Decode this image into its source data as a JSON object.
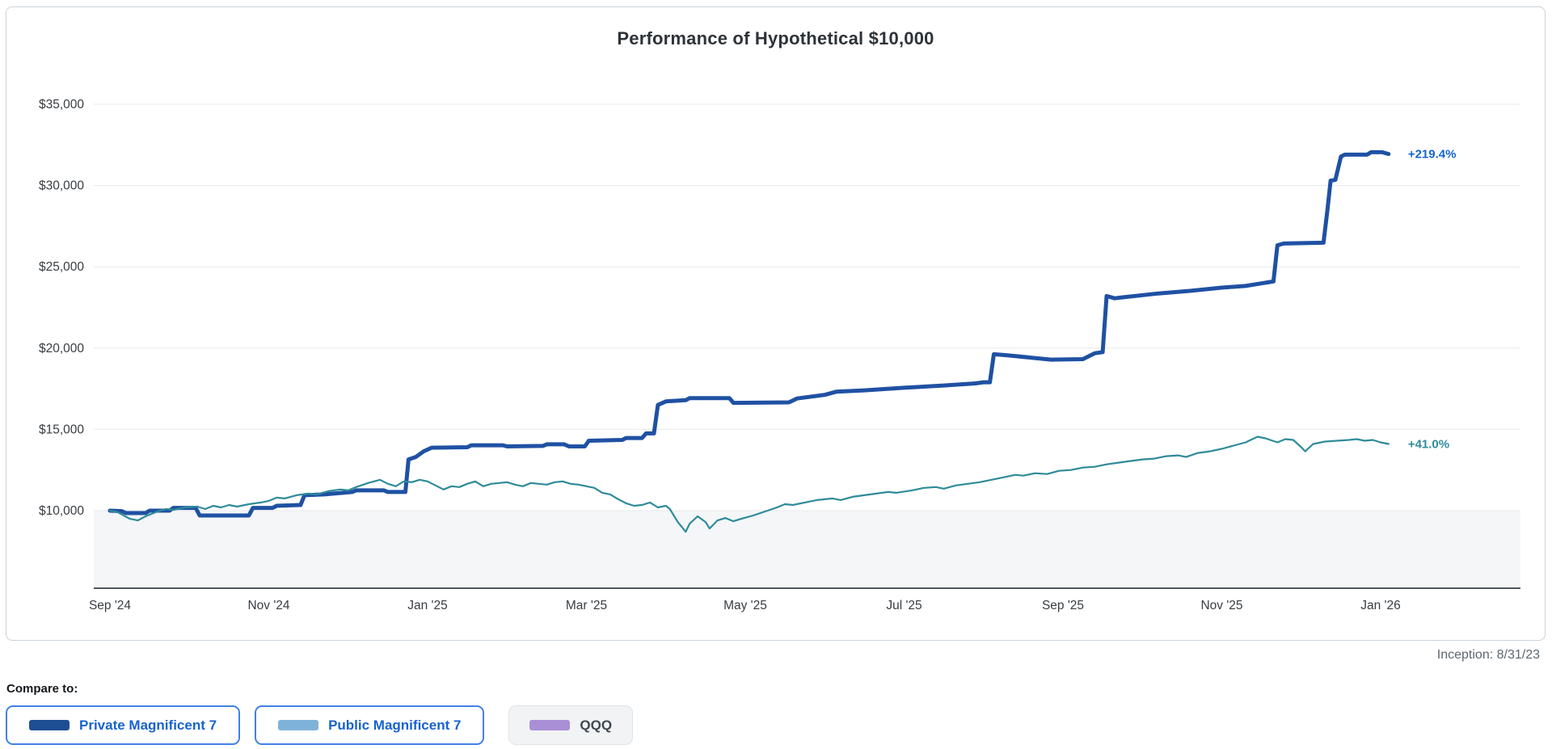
{
  "card": {
    "title": "Performance of Hypothetical $10,000"
  },
  "inception_note": "Inception: 8/31/23",
  "compare": {
    "label": "Compare to:",
    "buttons": [
      {
        "label": "Private Magnificent 7",
        "swatch_color": "#1d4e94",
        "selected": true
      },
      {
        "label": "Public Magnificent 7",
        "swatch_color": "#7fb2d9",
        "selected": true
      },
      {
        "label": "QQQ",
        "swatch_color": "#a98fd5",
        "selected": false
      }
    ]
  },
  "colors": {
    "private_line": "#1f51a3",
    "public_line": "#2f8b99",
    "grid": "#e7e9eb",
    "axis": "#50565b",
    "below_baseline_fill": "#f4f6f8",
    "tick_text": "#383d42",
    "selected_button_border": "#4181e8"
  },
  "chart_data": {
    "type": "line",
    "title": "Performance of Hypothetical $10,000",
    "xlabel": "",
    "ylabel": "",
    "grid": "horizontal-only",
    "baseline_value": 10000,
    "x_unit": "months since Sep 1 2024",
    "x_range_months": [
      0,
      16.1
    ],
    "ylim": [
      5200,
      36500
    ],
    "x_ticks": [
      {
        "label": "Sep '24",
        "m": 0
      },
      {
        "label": "Nov '24",
        "m": 2
      },
      {
        "label": "Jan '25",
        "m": 4
      },
      {
        "label": "Mar '25",
        "m": 6
      },
      {
        "label": "May '25",
        "m": 8
      },
      {
        "label": "Jul '25",
        "m": 10
      },
      {
        "label": "Sep '25",
        "m": 12
      },
      {
        "label": "Nov '25",
        "m": 14
      },
      {
        "label": "Jan '26",
        "m": 16
      }
    ],
    "y_ticks": [
      {
        "label": "$35,000",
        "value": 35000
      },
      {
        "label": "$30,000",
        "value": 30000
      },
      {
        "label": "$25,000",
        "value": 25000
      },
      {
        "label": "$20,000",
        "value": 20000
      },
      {
        "label": "$15,000",
        "value": 15000
      },
      {
        "label": "$10,000",
        "value": 10000
      }
    ],
    "series": [
      {
        "name": "Private Magnificent 7",
        "color": "#1f51a3",
        "stroke_width": 5,
        "end_label": "+219.4%",
        "end_label_color": "#1565c8",
        "end_value": 31940,
        "points": [
          [
            0,
            10000
          ],
          [
            0.15,
            9970
          ],
          [
            0.2,
            9850
          ],
          [
            0.45,
            9850
          ],
          [
            0.5,
            10000
          ],
          [
            0.75,
            10000
          ],
          [
            0.8,
            10170
          ],
          [
            1.08,
            10170
          ],
          [
            1.13,
            9700
          ],
          [
            1.75,
            9700
          ],
          [
            1.8,
            10170
          ],
          [
            2.05,
            10170
          ],
          [
            2.1,
            10300
          ],
          [
            2.4,
            10350
          ],
          [
            2.45,
            10950
          ],
          [
            2.7,
            11000
          ],
          [
            3.05,
            11150
          ],
          [
            3.1,
            11250
          ],
          [
            3.45,
            11250
          ],
          [
            3.5,
            11150
          ],
          [
            3.72,
            11150
          ],
          [
            3.76,
            13150
          ],
          [
            3.85,
            13300
          ],
          [
            3.95,
            13650
          ],
          [
            4.05,
            13870
          ],
          [
            4.5,
            13900
          ],
          [
            4.55,
            14020
          ],
          [
            4.95,
            14020
          ],
          [
            5.0,
            13950
          ],
          [
            5.45,
            13980
          ],
          [
            5.5,
            14080
          ],
          [
            5.72,
            14080
          ],
          [
            5.78,
            13950
          ],
          [
            5.98,
            13950
          ],
          [
            6.03,
            14300
          ],
          [
            6.45,
            14350
          ],
          [
            6.5,
            14470
          ],
          [
            6.7,
            14470
          ],
          [
            6.75,
            14750
          ],
          [
            6.85,
            14750
          ],
          [
            6.9,
            16500
          ],
          [
            7.0,
            16720
          ],
          [
            7.25,
            16800
          ],
          [
            7.3,
            16920
          ],
          [
            7.8,
            16920
          ],
          [
            7.85,
            16630
          ],
          [
            8.55,
            16660
          ],
          [
            8.65,
            16900
          ],
          [
            9.0,
            17120
          ],
          [
            9.15,
            17320
          ],
          [
            9.5,
            17400
          ],
          [
            10.0,
            17560
          ],
          [
            10.5,
            17700
          ],
          [
            10.9,
            17830
          ],
          [
            11.0,
            17900
          ],
          [
            11.08,
            17900
          ],
          [
            11.13,
            19620
          ],
          [
            11.3,
            19560
          ],
          [
            11.85,
            19290
          ],
          [
            12.25,
            19320
          ],
          [
            12.4,
            19680
          ],
          [
            12.5,
            19750
          ],
          [
            12.55,
            23200
          ],
          [
            12.65,
            23060
          ],
          [
            12.75,
            23120
          ],
          [
            13.2,
            23360
          ],
          [
            13.6,
            23520
          ],
          [
            14.0,
            23720
          ],
          [
            14.3,
            23820
          ],
          [
            14.5,
            23980
          ],
          [
            14.6,
            24060
          ],
          [
            14.65,
            24100
          ],
          [
            14.7,
            26320
          ],
          [
            14.78,
            26430
          ],
          [
            15.28,
            26480
          ],
          [
            15.33,
            28500
          ],
          [
            15.37,
            30300
          ],
          [
            15.43,
            30350
          ],
          [
            15.5,
            31780
          ],
          [
            15.55,
            31900
          ],
          [
            15.83,
            31900
          ],
          [
            15.88,
            32050
          ],
          [
            16.02,
            32050
          ],
          [
            16.1,
            31940
          ]
        ]
      },
      {
        "name": "Public Magnificent 7",
        "color": "#2f8b99",
        "stroke_width": 2.2,
        "end_label": "+41.0%",
        "end_label_color": "#2e8b9b",
        "end_value": 14100,
        "points": [
          [
            0,
            10000
          ],
          [
            0.1,
            9900
          ],
          [
            0.25,
            9500
          ],
          [
            0.35,
            9400
          ],
          [
            0.45,
            9650
          ],
          [
            0.6,
            9950
          ],
          [
            0.7,
            10100
          ],
          [
            0.8,
            10050
          ],
          [
            0.95,
            10200
          ],
          [
            1.1,
            10250
          ],
          [
            1.2,
            10100
          ],
          [
            1.3,
            10300
          ],
          [
            1.4,
            10200
          ],
          [
            1.5,
            10350
          ],
          [
            1.6,
            10250
          ],
          [
            1.75,
            10400
          ],
          [
            1.9,
            10500
          ],
          [
            2.0,
            10600
          ],
          [
            2.1,
            10800
          ],
          [
            2.2,
            10750
          ],
          [
            2.35,
            10950
          ],
          [
            2.5,
            11050
          ],
          [
            2.6,
            11000
          ],
          [
            2.75,
            11200
          ],
          [
            2.9,
            11300
          ],
          [
            3.0,
            11250
          ],
          [
            3.1,
            11450
          ],
          [
            3.25,
            11700
          ],
          [
            3.4,
            11900
          ],
          [
            3.5,
            11650
          ],
          [
            3.6,
            11500
          ],
          [
            3.7,
            11800
          ],
          [
            3.8,
            11750
          ],
          [
            3.9,
            11900
          ],
          [
            4.0,
            11800
          ],
          [
            4.1,
            11550
          ],
          [
            4.2,
            11300
          ],
          [
            4.3,
            11500
          ],
          [
            4.4,
            11450
          ],
          [
            4.5,
            11650
          ],
          [
            4.6,
            11800
          ],
          [
            4.7,
            11500
          ],
          [
            4.8,
            11650
          ],
          [
            4.9,
            11700
          ],
          [
            5.0,
            11750
          ],
          [
            5.1,
            11600
          ],
          [
            5.2,
            11500
          ],
          [
            5.3,
            11700
          ],
          [
            5.4,
            11650
          ],
          [
            5.5,
            11600
          ],
          [
            5.6,
            11750
          ],
          [
            5.7,
            11800
          ],
          [
            5.8,
            11650
          ],
          [
            5.9,
            11600
          ],
          [
            6.0,
            11500
          ],
          [
            6.1,
            11400
          ],
          [
            6.2,
            11100
          ],
          [
            6.3,
            11000
          ],
          [
            6.4,
            10700
          ],
          [
            6.5,
            10450
          ],
          [
            6.6,
            10300
          ],
          [
            6.7,
            10350
          ],
          [
            6.8,
            10500
          ],
          [
            6.9,
            10200
          ],
          [
            7.0,
            10300
          ],
          [
            7.05,
            10100
          ],
          [
            7.15,
            9300
          ],
          [
            7.25,
            8700
          ],
          [
            7.3,
            9200
          ],
          [
            7.4,
            9650
          ],
          [
            7.5,
            9300
          ],
          [
            7.55,
            8900
          ],
          [
            7.65,
            9400
          ],
          [
            7.75,
            9550
          ],
          [
            7.85,
            9350
          ],
          [
            7.95,
            9500
          ],
          [
            8.1,
            9700
          ],
          [
            8.25,
            9950
          ],
          [
            8.4,
            10200
          ],
          [
            8.5,
            10400
          ],
          [
            8.6,
            10350
          ],
          [
            8.75,
            10500
          ],
          [
            8.9,
            10650
          ],
          [
            9.0,
            10700
          ],
          [
            9.1,
            10750
          ],
          [
            9.2,
            10650
          ],
          [
            9.35,
            10850
          ],
          [
            9.5,
            10950
          ],
          [
            9.65,
            11050
          ],
          [
            9.8,
            11150
          ],
          [
            9.9,
            11100
          ],
          [
            10.1,
            11250
          ],
          [
            10.25,
            11400
          ],
          [
            10.4,
            11450
          ],
          [
            10.5,
            11350
          ],
          [
            10.65,
            11550
          ],
          [
            10.8,
            11650
          ],
          [
            10.95,
            11750
          ],
          [
            11.1,
            11900
          ],
          [
            11.25,
            12050
          ],
          [
            11.4,
            12200
          ],
          [
            11.5,
            12150
          ],
          [
            11.65,
            12300
          ],
          [
            11.8,
            12250
          ],
          [
            11.95,
            12450
          ],
          [
            12.1,
            12500
          ],
          [
            12.25,
            12650
          ],
          [
            12.4,
            12700
          ],
          [
            12.55,
            12850
          ],
          [
            12.7,
            12950
          ],
          [
            12.85,
            13050
          ],
          [
            13.0,
            13150
          ],
          [
            13.15,
            13200
          ],
          [
            13.3,
            13350
          ],
          [
            13.45,
            13400
          ],
          [
            13.55,
            13300
          ],
          [
            13.7,
            13550
          ],
          [
            13.85,
            13650
          ],
          [
            14.0,
            13800
          ],
          [
            14.15,
            14000
          ],
          [
            14.3,
            14200
          ],
          [
            14.45,
            14550
          ],
          [
            14.55,
            14450
          ],
          [
            14.7,
            14200
          ],
          [
            14.8,
            14400
          ],
          [
            14.9,
            14350
          ],
          [
            15.0,
            13900
          ],
          [
            15.05,
            13650
          ],
          [
            15.15,
            14100
          ],
          [
            15.3,
            14250
          ],
          [
            15.45,
            14300
          ],
          [
            15.6,
            14350
          ],
          [
            15.7,
            14400
          ],
          [
            15.8,
            14300
          ],
          [
            15.9,
            14350
          ],
          [
            16.0,
            14200
          ],
          [
            16.1,
            14100
          ]
        ]
      }
    ],
    "annotations": [
      {
        "text": "+219.4%",
        "series": "Private Magnificent 7"
      },
      {
        "text": "+41.0%",
        "series": "Public Magnificent 7"
      }
    ]
  }
}
